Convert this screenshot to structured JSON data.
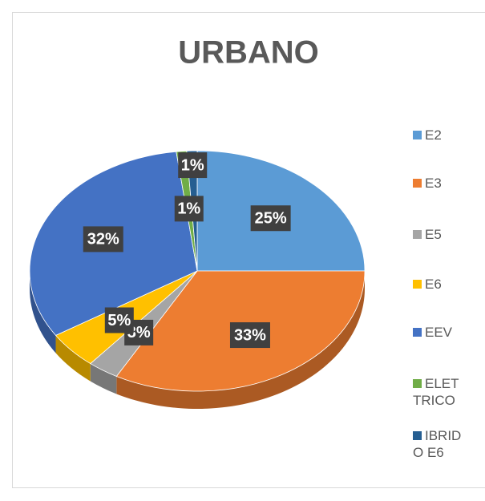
{
  "chart_data": {
    "type": "pie",
    "title": "URBANO",
    "categories": [
      "E2",
      "E3",
      "E5",
      "E6",
      "EEV",
      "ELETTRICO",
      "IBRIDO E6"
    ],
    "values": [
      25,
      33,
      3,
      5,
      32,
      1,
      1
    ],
    "value_labels": [
      "25%",
      "33%",
      "3%",
      "5%",
      "32%",
      "1%",
      "1%"
    ],
    "colors": [
      "#5b9bd5",
      "#ed7d31",
      "#a5a5a5",
      "#ffc000",
      "#4472c4",
      "#70ad47",
      "#255e91"
    ],
    "legend": "right"
  }
}
